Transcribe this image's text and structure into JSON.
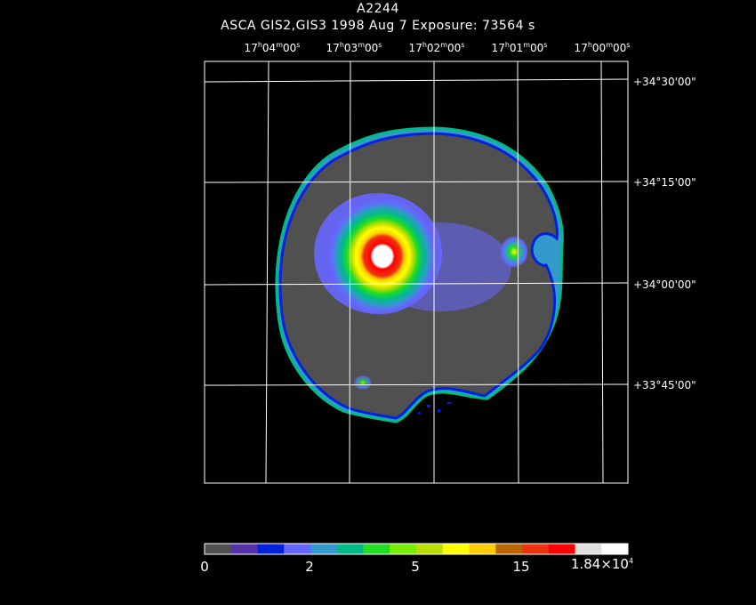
{
  "header": {
    "title": "A2244",
    "subtitle": "ASCA GIS2,GIS3   1998 Aug  7   Exposure: 73564 s"
  },
  "ra_ticks": [
    {
      "h": "17",
      "m": "04",
      "s": "00"
    },
    {
      "h": "17",
      "m": "03",
      "s": "00"
    },
    {
      "h": "17",
      "m": "02",
      "s": "00"
    },
    {
      "h": "17",
      "m": "01",
      "s": "00"
    },
    {
      "h": "17",
      "m": "00",
      "s": "00"
    }
  ],
  "dec_ticks": [
    "+34°30'00\"",
    "+34°15'00\"",
    "+34°00'00\"",
    "+33°45'00\""
  ],
  "colorbar": {
    "colors": [
      "#505050",
      "#5533aa",
      "#0022dd",
      "#6666ff",
      "#3399cc",
      "#00bb88",
      "#22dd22",
      "#77ee00",
      "#bbdd00",
      "#ffff00",
      "#ffcc00",
      "#bb6600",
      "#ee3311",
      "#ff0000",
      "#e0e0e0",
      "#ffffff"
    ],
    "labels": {
      "l0": "0",
      "l1": "2",
      "l2": "5",
      "l3": "15",
      "l4_base": "1.84×10",
      "l4_exp": "4"
    }
  }
}
